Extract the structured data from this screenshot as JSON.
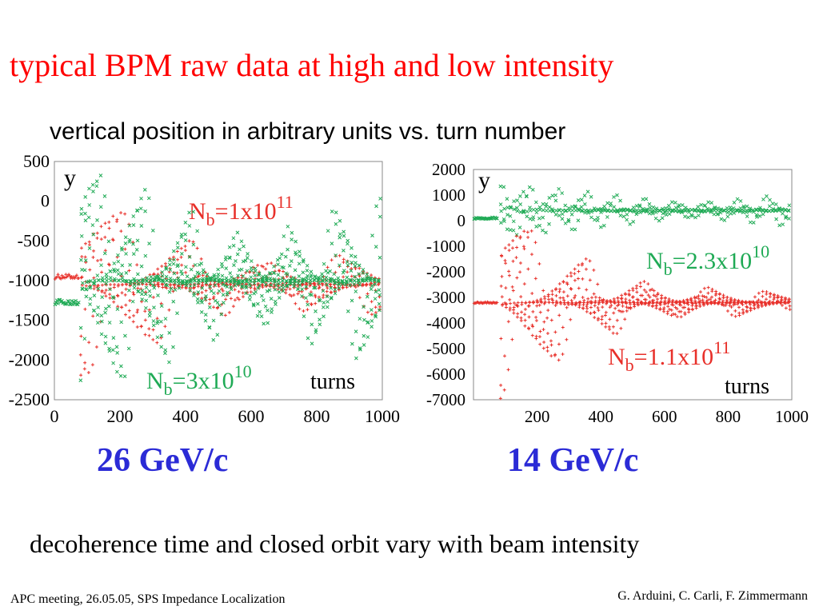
{
  "slide": {
    "title": "typical BPM raw data at high and low intensity",
    "subtitle": "vertical position in arbitrary units vs. turn number",
    "energy_left": "26 GeV/c",
    "energy_right": "14 GeV/c",
    "conclusion": "decoherence time and closed orbit vary with beam intensity",
    "footer_left": "APC meeting, 26.05.05, SPS Impedance Localization",
    "footer_right": "G. Arduini, C. Carli, F. Zimmermann"
  },
  "colors": {
    "title": "#ff0000",
    "energy": "#2b2bd6",
    "red_series": "#e8302a",
    "green_series": "#1faa55"
  },
  "chart_data": [
    {
      "type": "scatter",
      "ylabel": "y",
      "xlabel": "turns",
      "xlim": [
        0,
        1000
      ],
      "ylim": [
        -2500,
        500
      ],
      "x_ticks": [
        "0",
        "200",
        "400",
        "600",
        "800",
        "1000"
      ],
      "y_ticks": [
        "500",
        "0",
        "-500",
        "-1000",
        "-1500",
        "-2000",
        "-2500"
      ],
      "x_tick_values": [
        0,
        200,
        400,
        600,
        800,
        1000
      ],
      "y_tick_values": [
        500,
        0,
        -500,
        -1000,
        -1500,
        -2000,
        -2500
      ],
      "series": [
        {
          "label_main": "N",
          "label_sub": "b",
          "label_rest": "=1x10",
          "label_sup": "11",
          "color": "#e8302a",
          "marker": "+",
          "baseline": -950,
          "baseline_end_turn": 75,
          "kick_turn": 80,
          "centre": -1050,
          "amplitude_start": 1200,
          "amplitude_end": 400,
          "tune": 0.03,
          "lines": 8,
          "points_per_line": 75
        },
        {
          "label_main": "N",
          "label_sub": "b",
          "label_rest": "=3x10",
          "label_sup": "10",
          "color": "#1faa55",
          "marker": "x",
          "baseline": -1270,
          "baseline_end_turn": 75,
          "kick_turn": 80,
          "centre": -1000,
          "amplitude_start": 1400,
          "amplitude_end": 1100,
          "tune": 0.045,
          "lines": 10,
          "points_per_line": 75
        }
      ]
    },
    {
      "type": "scatter",
      "ylabel": "y",
      "xlabel": "turns",
      "xlim": [
        0,
        1000
      ],
      "ylim": [
        -7000,
        2000
      ],
      "x_ticks": [
        "200",
        "400",
        "600",
        "800",
        "1000"
      ],
      "y_ticks": [
        "2000",
        "1000",
        "0",
        "-1000",
        "-2000",
        "-3000",
        "-4000",
        "-5000",
        "-6000",
        "-7000"
      ],
      "x_tick_values": [
        200,
        400,
        600,
        800,
        1000
      ],
      "y_tick_values": [
        2000,
        1000,
        0,
        -1000,
        -2000,
        -3000,
        -4000,
        -5000,
        -6000,
        -7000
      ],
      "series": [
        {
          "label_main": "N",
          "label_sub": "b",
          "label_rest": "=2.3x10",
          "label_sup": "10",
          "color": "#1faa55",
          "marker": "x",
          "baseline": 100,
          "baseline_end_turn": 75,
          "kick_turn": 85,
          "centre": 400,
          "amplitude_start": 1000,
          "amplitude_end": 800,
          "tune": 0.07,
          "lines": 4,
          "points_per_line": 90
        },
        {
          "label_main": "N",
          "label_sub": "b",
          "label_rest": "=1.1x10",
          "label_sup": "11",
          "color": "#e8302a",
          "marker": "+",
          "baseline": -3200,
          "baseline_end_turn": 75,
          "kick_turn": 85,
          "centre": -3200,
          "amplitude_start": 3800,
          "amplitude_end": 300,
          "tune": 0.035,
          "lines": 10,
          "points_per_line": 75
        }
      ]
    }
  ]
}
